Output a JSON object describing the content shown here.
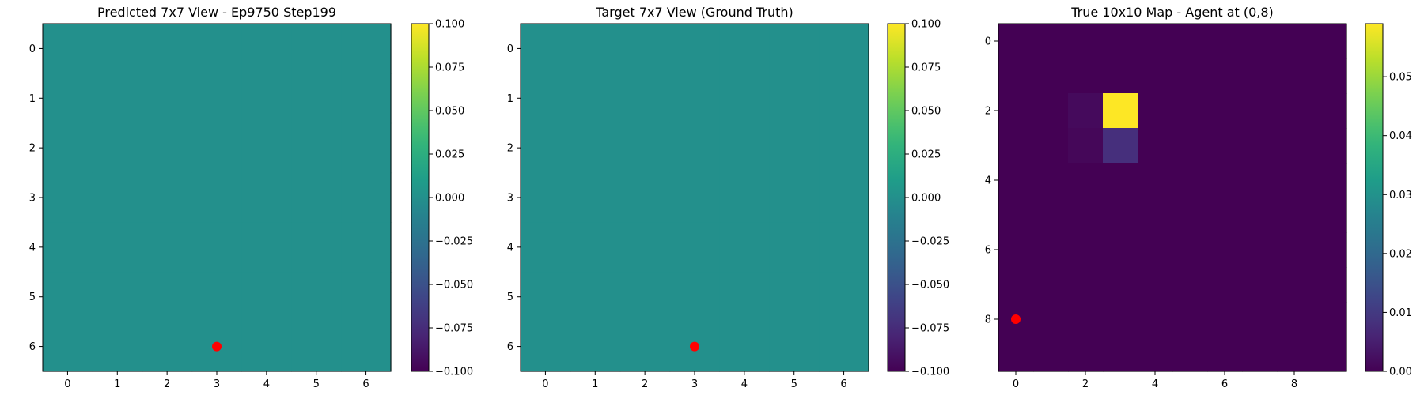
{
  "chart_data": [
    {
      "type": "heatmap",
      "title": "Predicted 7x7 View - Ep9750 Step199",
      "rows": 7,
      "cols": 7,
      "values": [
        [
          0,
          0,
          0,
          0,
          0,
          0,
          0
        ],
        [
          0,
          0,
          0,
          0,
          0,
          0,
          0
        ],
        [
          0,
          0,
          0,
          0,
          0,
          0,
          0
        ],
        [
          0,
          0,
          0,
          0,
          0,
          0,
          0
        ],
        [
          0,
          0,
          0,
          0,
          0,
          0,
          0
        ],
        [
          0,
          0,
          0,
          0,
          0,
          0,
          0
        ],
        [
          0,
          0,
          0,
          0,
          0,
          0,
          0
        ]
      ],
      "vmin": -0.1,
      "vmax": 0.1,
      "colormap": "viridis",
      "xticks": [
        0,
        1,
        2,
        3,
        4,
        5,
        6
      ],
      "yticks": [
        0,
        1,
        2,
        3,
        4,
        5,
        6
      ],
      "colorbar_ticks": [
        "0.100",
        "0.075",
        "0.050",
        "0.025",
        "0.000",
        "−0.025",
        "−0.050",
        "−0.075",
        "−0.100"
      ],
      "colorbar_tick_values": [
        0.1,
        0.075,
        0.05,
        0.025,
        0,
        -0.025,
        -0.05,
        -0.075,
        -0.1
      ],
      "marker": {
        "x": 3,
        "y": 6,
        "color": "#ff0000"
      }
    },
    {
      "type": "heatmap",
      "title": "Target 7x7 View (Ground Truth)",
      "rows": 7,
      "cols": 7,
      "values": [
        [
          0,
          0,
          0,
          0,
          0,
          0,
          0
        ],
        [
          0,
          0,
          0,
          0,
          0,
          0,
          0
        ],
        [
          0,
          0,
          0,
          0,
          0,
          0,
          0
        ],
        [
          0,
          0,
          0,
          0,
          0,
          0,
          0
        ],
        [
          0,
          0,
          0,
          0,
          0,
          0,
          0
        ],
        [
          0,
          0,
          0,
          0,
          0,
          0,
          0
        ],
        [
          0,
          0,
          0,
          0,
          0,
          0,
          0
        ]
      ],
      "vmin": -0.1,
      "vmax": 0.1,
      "colormap": "viridis",
      "xticks": [
        0,
        1,
        2,
        3,
        4,
        5,
        6
      ],
      "yticks": [
        0,
        1,
        2,
        3,
        4,
        5,
        6
      ],
      "colorbar_ticks": [
        "0.100",
        "0.075",
        "0.050",
        "0.025",
        "0.000",
        "−0.025",
        "−0.050",
        "−0.075",
        "−0.100"
      ],
      "colorbar_tick_values": [
        0.1,
        0.075,
        0.05,
        0.025,
        0,
        -0.025,
        -0.05,
        -0.075,
        -0.1
      ],
      "marker": {
        "x": 3,
        "y": 6,
        "color": "#ff0000"
      }
    },
    {
      "type": "heatmap",
      "title": "True 10x10 Map - Agent at (0,8)",
      "rows": 10,
      "cols": 10,
      "values": [
        [
          0,
          0,
          0,
          0,
          0,
          0,
          0,
          0,
          0,
          0
        ],
        [
          0,
          0,
          0,
          0,
          0,
          0,
          0,
          0,
          0,
          0
        ],
        [
          0,
          0,
          0.0015,
          0.059,
          0,
          0,
          0,
          0,
          0,
          0
        ],
        [
          0,
          0,
          0.001,
          0.008,
          0,
          0,
          0,
          0,
          0,
          0
        ],
        [
          0,
          0,
          0,
          0,
          0,
          0,
          0,
          0,
          0,
          0
        ],
        [
          0,
          0,
          0,
          0,
          0,
          0,
          0,
          0,
          0,
          0
        ],
        [
          0,
          0,
          0,
          0,
          0,
          0,
          0,
          0,
          0,
          0
        ],
        [
          0,
          0,
          0,
          0,
          0,
          0,
          0,
          0,
          0,
          0
        ],
        [
          0,
          0,
          0,
          0,
          0,
          0,
          0,
          0,
          0,
          0
        ],
        [
          0,
          0,
          0,
          0,
          0,
          0,
          0,
          0,
          0,
          0
        ]
      ],
      "vmin": 0,
      "vmax": 0.059,
      "colormap": "viridis",
      "xticks": [
        0,
        2,
        4,
        6,
        8
      ],
      "yticks": [
        0,
        2,
        4,
        6,
        8
      ],
      "colorbar_ticks": [
        "0.05",
        "0.04",
        "0.03",
        "0.02",
        "0.01",
        "0.00"
      ],
      "colorbar_tick_values": [
        0.05,
        0.04,
        0.03,
        0.02,
        0.01,
        0
      ],
      "marker": {
        "x": 0,
        "y": 8,
        "color": "#ff0000"
      }
    }
  ]
}
